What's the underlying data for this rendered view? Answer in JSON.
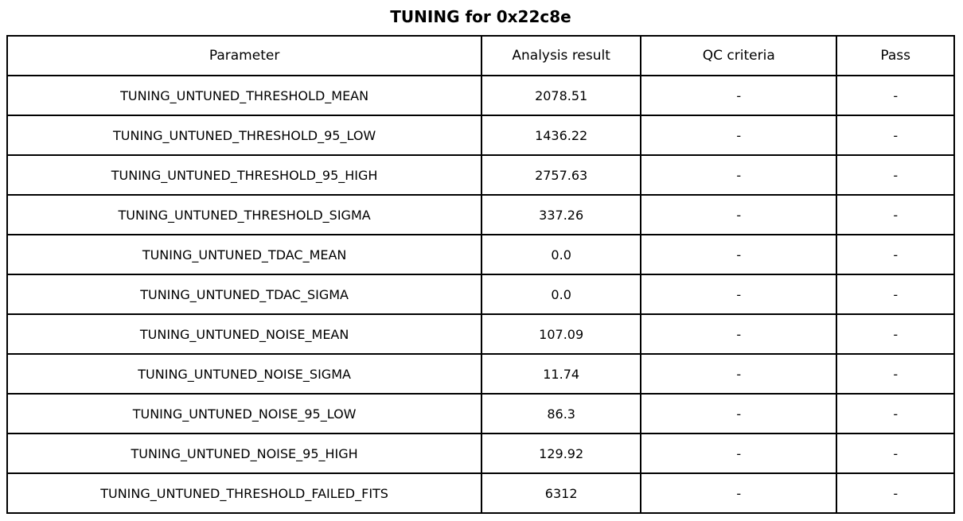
{
  "title": "TUNING for 0x22c8e",
  "colors": {
    "background": "#ffffff",
    "border": "#000000",
    "text": "#000000"
  },
  "chart_data": {
    "type": "table",
    "title": "TUNING for 0x22c8e",
    "columns": [
      "Parameter",
      "Analysis result",
      "QC criteria",
      "Pass"
    ],
    "rows": [
      {
        "parameter": "TUNING_UNTUNED_THRESHOLD_MEAN",
        "analysis_result": "2078.51",
        "qc_criteria": "-",
        "pass": "-"
      },
      {
        "parameter": "TUNING_UNTUNED_THRESHOLD_95_LOW",
        "analysis_result": "1436.22",
        "qc_criteria": "-",
        "pass": "-"
      },
      {
        "parameter": "TUNING_UNTUNED_THRESHOLD_95_HIGH",
        "analysis_result": "2757.63",
        "qc_criteria": "-",
        "pass": "-"
      },
      {
        "parameter": "TUNING_UNTUNED_THRESHOLD_SIGMA",
        "analysis_result": "337.26",
        "qc_criteria": "-",
        "pass": "-"
      },
      {
        "parameter": "TUNING_UNTUNED_TDAC_MEAN",
        "analysis_result": "0.0",
        "qc_criteria": "-",
        "pass": "-"
      },
      {
        "parameter": "TUNING_UNTUNED_TDAC_SIGMA",
        "analysis_result": "0.0",
        "qc_criteria": "-",
        "pass": "-"
      },
      {
        "parameter": "TUNING_UNTUNED_NOISE_MEAN",
        "analysis_result": "107.09",
        "qc_criteria": "-",
        "pass": "-"
      },
      {
        "parameter": "TUNING_UNTUNED_NOISE_SIGMA",
        "analysis_result": "11.74",
        "qc_criteria": "-",
        "pass": "-"
      },
      {
        "parameter": "TUNING_UNTUNED_NOISE_95_LOW",
        "analysis_result": "86.3",
        "qc_criteria": "-",
        "pass": "-"
      },
      {
        "parameter": "TUNING_UNTUNED_NOISE_95_HIGH",
        "analysis_result": "129.92",
        "qc_criteria": "-",
        "pass": "-"
      },
      {
        "parameter": "TUNING_UNTUNED_THRESHOLD_FAILED_FITS",
        "analysis_result": "6312",
        "qc_criteria": "-",
        "pass": "-"
      }
    ]
  }
}
